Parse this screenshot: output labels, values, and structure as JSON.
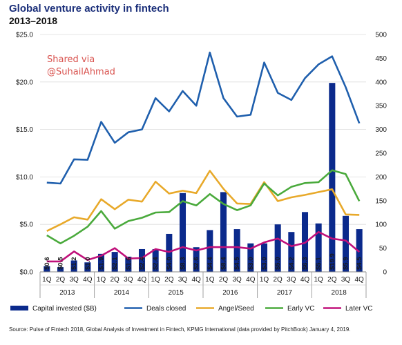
{
  "title": "Global venture activity in fintech",
  "subtitle": "2013–2018",
  "watermark": {
    "line1": "Shared via",
    "line2": "@SuhailAhmad"
  },
  "source": "Source: Pulse of Fintech 2018, Global Analysis of Investment in Fintech, KPMG International (data provided by PitchBook) January 4, 2019.",
  "colors": {
    "capital": "#0b2a8c",
    "deals": "#1f5fad",
    "angel": "#e8a92a",
    "early": "#4aaa3c",
    "later": "#c0107a"
  },
  "chart_data": {
    "type": "bar+line",
    "categories": [
      "1Q",
      "2Q",
      "3Q",
      "4Q",
      "1Q",
      "2Q",
      "3Q",
      "4Q",
      "1Q",
      "2Q",
      "3Q",
      "4Q",
      "1Q",
      "2Q",
      "3Q",
      "4Q",
      "1Q",
      "2Q",
      "3Q",
      "4Q",
      "1Q",
      "2Q",
      "3Q",
      "4Q"
    ],
    "years": [
      "2013",
      "2014",
      "2015",
      "2016",
      "2017",
      "2018"
    ],
    "left_axis": {
      "min": 0,
      "max": 25,
      "ticks": [
        "$0.0",
        "$5.0",
        "$10.0",
        "$15.0",
        "$20.0",
        "$25.0"
      ]
    },
    "right_axis": {
      "min": 0,
      "max": 500,
      "ticks": [
        "0",
        "50",
        "100",
        "150",
        "200",
        "250",
        "300",
        "350",
        "400",
        "450",
        "500"
      ]
    },
    "bars": {
      "name": "Capital invested ($B)",
      "values": [
        0.6,
        0.5,
        1.2,
        1.0,
        1.9,
        2.1,
        1.6,
        2.4,
        2.4,
        4.0,
        8.3,
        2.6,
        4.4,
        8.4,
        4.5,
        3.0,
        3.0,
        5.0,
        4.2,
        6.3,
        5.1,
        19.9,
        5.9,
        4.5
      ],
      "labels": [
        "$0.6",
        "$0.5",
        "$1.2",
        "$1.0",
        "$1.9",
        "$2.1",
        "$1.6",
        "$2.4",
        "$2.4",
        "$4.0",
        "$8.3",
        "$2.6",
        "$4.4",
        "$8.4",
        "$4.5",
        "$3.0",
        "$3.0",
        "$5.0",
        "$4.2",
        "$6.3",
        "$5.1",
        "$19.9",
        "$5.9",
        "$4.5"
      ]
    },
    "series": [
      {
        "name": "Deals closed",
        "values": [
          188,
          186,
          237,
          236,
          316,
          272,
          294,
          300,
          366,
          338,
          381,
          350,
          462,
          366,
          327,
          331,
          441,
          377,
          362,
          408,
          437,
          454,
          389,
          313
        ]
      },
      {
        "name": "Angel/Seed",
        "values": [
          86,
          100,
          115,
          110,
          153,
          132,
          152,
          148,
          190,
          165,
          171,
          166,
          213,
          175,
          144,
          143,
          189,
          149,
          157,
          162,
          168,
          174,
          121,
          120
        ]
      },
      {
        "name": "Early VC",
        "values": [
          77,
          60,
          76,
          95,
          128,
          91,
          107,
          114,
          125,
          126,
          149,
          140,
          164,
          143,
          130,
          140,
          186,
          161,
          179,
          187,
          189,
          214,
          206,
          149
        ]
      },
      {
        "name": "Later VC",
        "values": [
          22,
          22,
          43,
          25,
          34,
          50,
          28,
          29,
          48,
          42,
          52,
          45,
          52,
          52,
          52,
          49,
          62,
          70,
          54,
          61,
          84,
          70,
          66,
          42
        ]
      }
    ],
    "legend": {
      "position": "bottom"
    }
  }
}
